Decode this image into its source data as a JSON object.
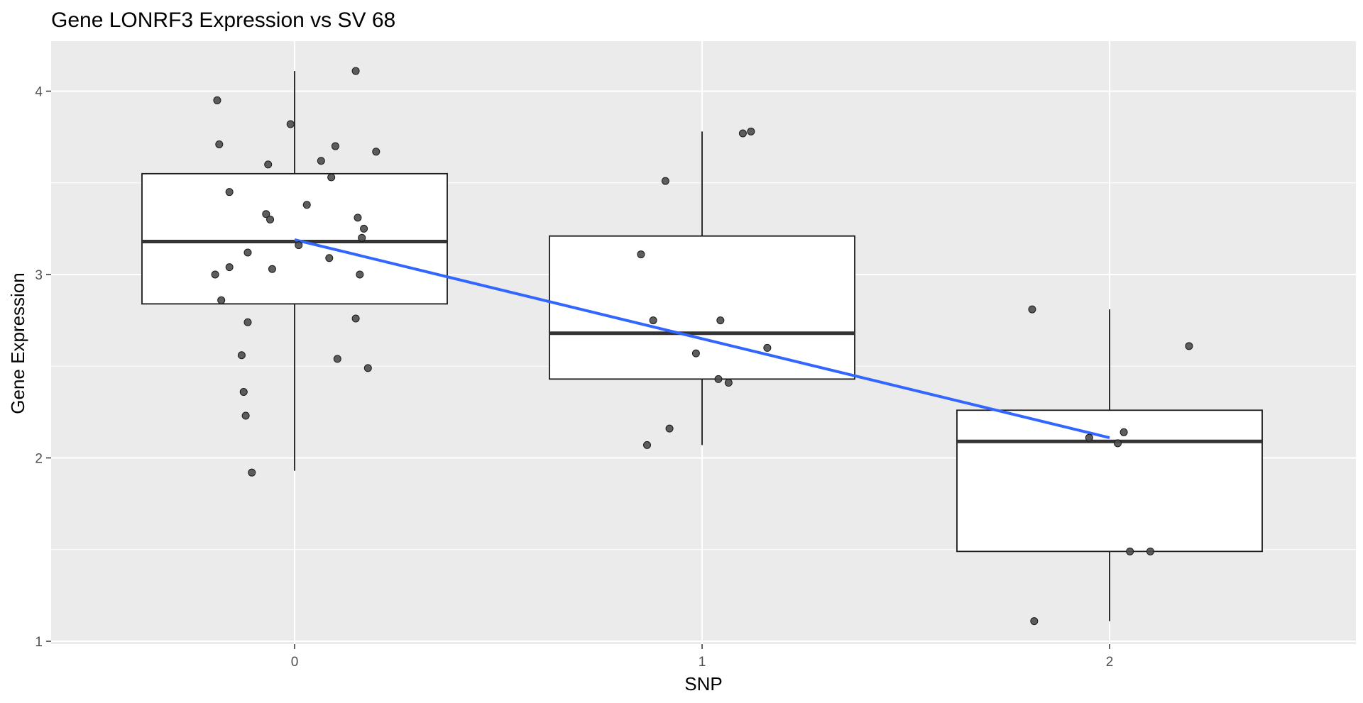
{
  "chart_data": {
    "type": "boxplot",
    "title": "Gene LONRF3 Expression vs SV 68",
    "xlabel": "SNP",
    "ylabel": "Gene Expression",
    "xlim": [
      -0.5,
      2.5
    ],
    "ylim": [
      0.97,
      4.27
    ],
    "x_ticks": [
      "0",
      "1",
      "2"
    ],
    "y_ticks": [
      "1",
      "2",
      "3",
      "4"
    ],
    "colors": {
      "panel": "#ebebeb",
      "grid": "#ffffff",
      "box_fill": "#ffffff",
      "box_line": "#1a1a1a",
      "median": "#333333",
      "point": "#4d4d4d",
      "fit_line": "#3366ff"
    },
    "boxes": [
      {
        "x": 0,
        "lower": 1.93,
        "q1": 2.84,
        "median": 3.18,
        "q3": 3.55,
        "upper": 4.11
      },
      {
        "x": 1,
        "lower": 2.07,
        "q1": 2.43,
        "median": 2.68,
        "q3": 3.21,
        "upper": 3.78
      },
      {
        "x": 2,
        "lower": 1.11,
        "q1": 1.49,
        "median": 2.09,
        "q3": 2.26,
        "upper": 2.81
      }
    ],
    "points": [
      {
        "x": -0.19,
        "y": 3.95
      },
      {
        "x": -0.185,
        "y": 3.71
      },
      {
        "x": -0.065,
        "y": 3.6
      },
      {
        "x": 0.065,
        "y": 3.62
      },
      {
        "x": 0.1,
        "y": 3.7
      },
      {
        "x": 0.2,
        "y": 3.67
      },
      {
        "x": -0.01,
        "y": 3.82
      },
      {
        "x": 0.15,
        "y": 4.11
      },
      {
        "x": 0.09,
        "y": 3.53
      },
      {
        "x": -0.16,
        "y": 3.45
      },
      {
        "x": 0.03,
        "y": 3.38
      },
      {
        "x": -0.07,
        "y": 3.33
      },
      {
        "x": -0.06,
        "y": 3.3
      },
      {
        "x": 0.155,
        "y": 3.31
      },
      {
        "x": 0.17,
        "y": 3.25
      },
      {
        "x": 0.165,
        "y": 3.2
      },
      {
        "x": 0.01,
        "y": 3.16
      },
      {
        "x": -0.115,
        "y": 3.12
      },
      {
        "x": 0.085,
        "y": 3.09
      },
      {
        "x": -0.16,
        "y": 3.04
      },
      {
        "x": -0.055,
        "y": 3.03
      },
      {
        "x": -0.195,
        "y": 3.0
      },
      {
        "x": 0.16,
        "y": 3.0
      },
      {
        "x": -0.18,
        "y": 2.86
      },
      {
        "x": -0.115,
        "y": 2.74
      },
      {
        "x": 0.15,
        "y": 2.76
      },
      {
        "x": -0.13,
        "y": 2.56
      },
      {
        "x": 0.105,
        "y": 2.54
      },
      {
        "x": 0.18,
        "y": 2.49
      },
      {
        "x": -0.125,
        "y": 2.36
      },
      {
        "x": -0.12,
        "y": 2.23
      },
      {
        "x": -0.105,
        "y": 1.92
      },
      {
        "x": 1.1,
        "y": 3.77
      },
      {
        "x": 1.12,
        "y": 3.78
      },
      {
        "x": 0.91,
        "y": 3.51
      },
      {
        "x": 0.85,
        "y": 3.11
      },
      {
        "x": 0.88,
        "y": 2.75
      },
      {
        "x": 1.045,
        "y": 2.75
      },
      {
        "x": 0.985,
        "y": 2.57
      },
      {
        "x": 1.16,
        "y": 2.6
      },
      {
        "x": 1.04,
        "y": 2.43
      },
      {
        "x": 1.065,
        "y": 2.41
      },
      {
        "x": 0.92,
        "y": 2.16
      },
      {
        "x": 0.865,
        "y": 2.07
      },
      {
        "x": 1.81,
        "y": 2.81
      },
      {
        "x": 2.195,
        "y": 2.61
      },
      {
        "x": 1.95,
        "y": 2.11
      },
      {
        "x": 2.035,
        "y": 2.14
      },
      {
        "x": 2.02,
        "y": 2.08
      },
      {
        "x": 2.05,
        "y": 1.49
      },
      {
        "x": 2.1,
        "y": 1.49
      },
      {
        "x": 1.815,
        "y": 1.11
      }
    ],
    "fit_line": {
      "x": [
        0,
        2
      ],
      "y": [
        3.19,
        2.11
      ]
    }
  }
}
